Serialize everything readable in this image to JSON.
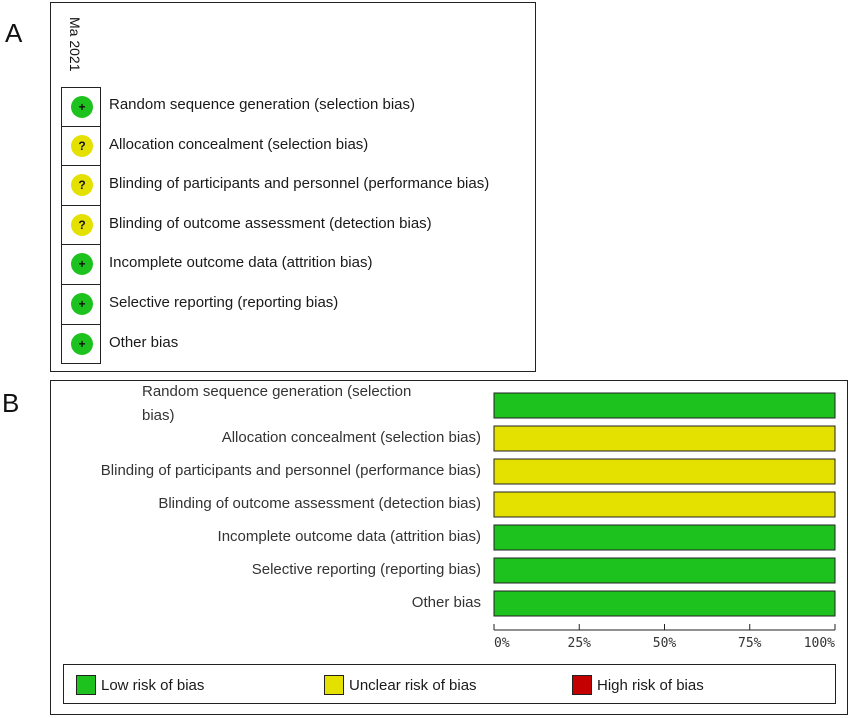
{
  "panel_labels": {
    "a": "A",
    "b": "B"
  },
  "panel_a": {
    "study": "Ma 2021",
    "rows": [
      {
        "domain": "Random sequence generation (selection bias)",
        "judgement": "low",
        "symbol": "+"
      },
      {
        "domain": "Allocation concealment (selection bias)",
        "judgement": "unclear",
        "symbol": "?"
      },
      {
        "domain": "Blinding of participants and personnel (performance bias)",
        "judgement": "unclear",
        "symbol": "?"
      },
      {
        "domain": "Blinding of outcome assessment (detection bias)",
        "judgement": "unclear",
        "symbol": "?"
      },
      {
        "domain": "Incomplete outcome data (attrition bias)",
        "judgement": "low",
        "symbol": "+"
      },
      {
        "domain": "Selective reporting (reporting bias)",
        "judgement": "low",
        "symbol": "+"
      },
      {
        "domain": "Other bias",
        "judgement": "low",
        "symbol": "+"
      }
    ]
  },
  "chart_data": {
    "type": "bar",
    "orientation": "horizontal",
    "stacked": true,
    "categories": [
      "Random sequence generation (selection bias)",
      "Allocation concealment (selection bias)",
      "Blinding of participants and personnel (performance bias)",
      "Blinding of outcome assessment (detection bias)",
      "Incomplete outcome data (attrition bias)",
      "Selective reporting (reporting bias)",
      "Other bias"
    ],
    "category_display": [
      [
        "Random sequence generation (selection",
        "bias)"
      ],
      [
        "Allocation concealment (selection bias)"
      ],
      [
        "Blinding of participants and personnel (performance bias)"
      ],
      [
        "Blinding of outcome assessment (detection bias)"
      ],
      [
        "Incomplete outcome data (attrition bias)"
      ],
      [
        "Selective reporting (reporting bias)"
      ],
      [
        "Other bias"
      ]
    ],
    "series": [
      {
        "name": "Low risk of bias",
        "color": "#1ec21e",
        "values": [
          100,
          0,
          0,
          0,
          100,
          100,
          100
        ]
      },
      {
        "name": "Unclear risk of bias",
        "color": "#e4e000",
        "values": [
          0,
          100,
          100,
          100,
          0,
          0,
          0
        ]
      },
      {
        "name": "High risk of bias",
        "color": "#c40000",
        "values": [
          0,
          0,
          0,
          0,
          0,
          0,
          0
        ]
      }
    ],
    "xlim": [
      0,
      100
    ],
    "ticks": [
      0,
      25,
      50,
      75,
      100
    ],
    "tick_labels": [
      "0%",
      "25%",
      "50%",
      "75%",
      "100%"
    ],
    "legend_position": "bottom"
  },
  "legend": [
    {
      "label": "Low risk of bias",
      "color": "#1ec21e"
    },
    {
      "label": "Unclear risk of bias",
      "color": "#e4e000"
    },
    {
      "label": "High risk of bias",
      "color": "#c40000"
    }
  ]
}
